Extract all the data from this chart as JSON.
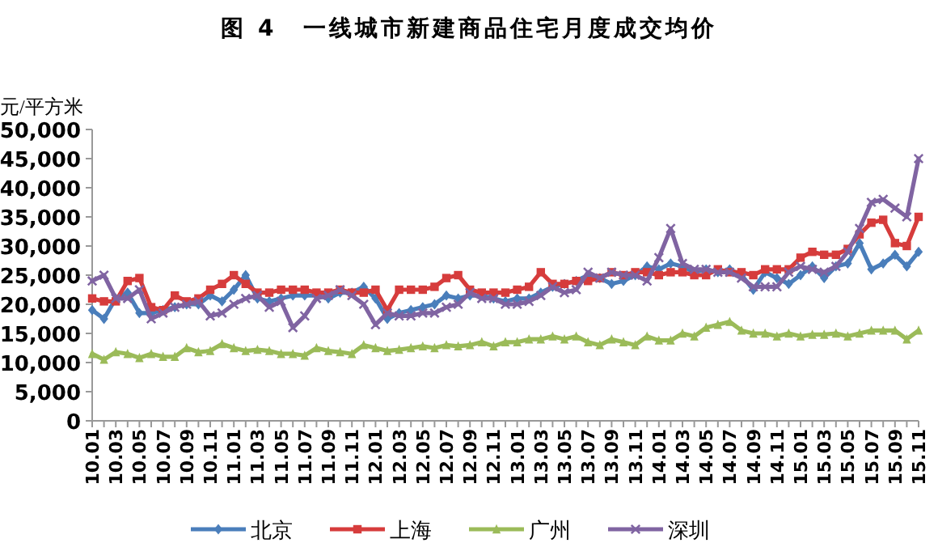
{
  "chart_data": {
    "type": "line",
    "title": "图 4　一线城市新建商品住宅月度成交均价",
    "ylabel": "元/平方米",
    "categories": [
      "10.01",
      null,
      "10.03",
      null,
      "10.05",
      null,
      "10.07",
      null,
      "10.09",
      null,
      "10.11",
      null,
      "11.01",
      null,
      "11.03",
      null,
      "11.05",
      null,
      "11.07",
      null,
      "11.09",
      null,
      "11.11",
      null,
      "12.01",
      null,
      "12.03",
      null,
      "12.05",
      null,
      "12.07",
      null,
      "12.09",
      null,
      "12.11",
      null,
      "13.01",
      null,
      "13.03",
      null,
      "13.05",
      null,
      "13.07",
      null,
      "13.09",
      null,
      "13.11",
      null,
      "14.01",
      null,
      "14.03",
      null,
      "14.05",
      null,
      "14.07",
      null,
      "14.09",
      null,
      "14.11",
      null,
      "15.01",
      null,
      "15.03",
      null,
      "15.05",
      null,
      "15.07",
      null,
      "15.09",
      null,
      "15.11"
    ],
    "ylim": [
      0,
      50000
    ],
    "yticks": [
      {
        "value": 0,
        "label": "0"
      },
      {
        "value": 5000,
        "label": "5,000"
      },
      {
        "value": 10000,
        "label": "10,000"
      },
      {
        "value": 15000,
        "label": "15,000"
      },
      {
        "value": 20000,
        "label": "20,000"
      },
      {
        "value": 25000,
        "label": "25,000"
      },
      {
        "value": 30000,
        "label": "30,000"
      },
      {
        "value": 35000,
        "label": "35,000"
      },
      {
        "value": 40000,
        "label": "40,000"
      },
      {
        "value": 45000,
        "label": "45,000"
      },
      {
        "value": 50000,
        "label": "50,000"
      }
    ],
    "grid": false,
    "legend": "bottom",
    "line_style": "solid",
    "series": [
      {
        "name": "北京",
        "color": "#4a7ebb",
        "marker": "diamond",
        "values": [
          19000,
          17500,
          21000,
          22000,
          18500,
          18500,
          19000,
          19500,
          20000,
          20000,
          21500,
          20500,
          22500,
          25000,
          21000,
          20500,
          21000,
          21500,
          21500,
          21500,
          21000,
          22000,
          22000,
          23000,
          21000,
          17500,
          18500,
          19000,
          19500,
          20000,
          21500,
          21000,
          21500,
          21500,
          21000,
          20500,
          21000,
          21000,
          22000,
          23000,
          23500,
          24000,
          25000,
          24500,
          23500,
          24000,
          25000,
          26500,
          26000,
          27000,
          26500,
          25500,
          26000,
          25500,
          26000,
          25000,
          22500,
          25500,
          24500,
          23500,
          25000,
          26500,
          24500,
          26500,
          27000,
          30500,
          26000,
          27000,
          28500,
          26500,
          29000
        ]
      },
      {
        "name": "上海",
        "color": "#d63c3c",
        "marker": "square",
        "values": [
          21000,
          20500,
          20500,
          24000,
          24500,
          19500,
          19000,
          21500,
          20500,
          21000,
          22500,
          23500,
          25000,
          23500,
          22000,
          22000,
          22500,
          22500,
          22500,
          22000,
          22000,
          22500,
          22000,
          22000,
          22500,
          19000,
          22500,
          22500,
          22500,
          23000,
          24500,
          25000,
          22500,
          22000,
          22000,
          22000,
          22500,
          23000,
          25500,
          23500,
          23500,
          24000,
          24000,
          24500,
          25500,
          25000,
          25500,
          25500,
          25000,
          25500,
          25500,
          25000,
          25000,
          26000,
          25500,
          25500,
          25000,
          26000,
          26000,
          26000,
          28000,
          29000,
          28500,
          28500,
          29500,
          32000,
          34000,
          34500,
          30500,
          30000,
          35000
        ]
      },
      {
        "name": "广州",
        "color": "#9bbb59",
        "marker": "triangle",
        "values": [
          11500,
          10500,
          11800,
          11500,
          10800,
          11500,
          11000,
          11000,
          12500,
          11800,
          12000,
          13200,
          12500,
          12000,
          12200,
          12000,
          11500,
          11500,
          11200,
          12500,
          12000,
          11800,
          11500,
          13000,
          12500,
          12000,
          12200,
          12500,
          12800,
          12500,
          13000,
          12800,
          13000,
          13500,
          12800,
          13500,
          13500,
          14000,
          14000,
          14500,
          14000,
          14500,
          13500,
          13000,
          14000,
          13500,
          13000,
          14500,
          13800,
          13800,
          15000,
          14500,
          16000,
          16500,
          17000,
          15500,
          15000,
          15000,
          14500,
          15000,
          14500,
          14800,
          14800,
          15000,
          14500,
          15000,
          15500,
          15500,
          15500,
          14000,
          15500
        ]
      },
      {
        "name": "深圳",
        "color": "#8064a2",
        "marker": "cross",
        "values": [
          24000,
          25000,
          21000,
          21000,
          22500,
          17500,
          18500,
          19500,
          20000,
          20500,
          18000,
          18500,
          20000,
          21000,
          21500,
          19500,
          20500,
          16000,
          18000,
          21000,
          21500,
          22500,
          21500,
          20000,
          16500,
          18500,
          18000,
          18000,
          18500,
          18500,
          19500,
          20000,
          22000,
          21000,
          21000,
          20000,
          20000,
          20500,
          21500,
          23000,
          22000,
          22500,
          25500,
          24500,
          25500,
          25000,
          25000,
          24000,
          28000,
          33000,
          27000,
          26000,
          26000,
          25500,
          25500,
          24500,
          23000,
          23000,
          23000,
          25500,
          26500,
          26000,
          25500,
          26500,
          29000,
          33000,
          37500,
          38000,
          36500,
          35000,
          45000
        ]
      }
    ]
  }
}
